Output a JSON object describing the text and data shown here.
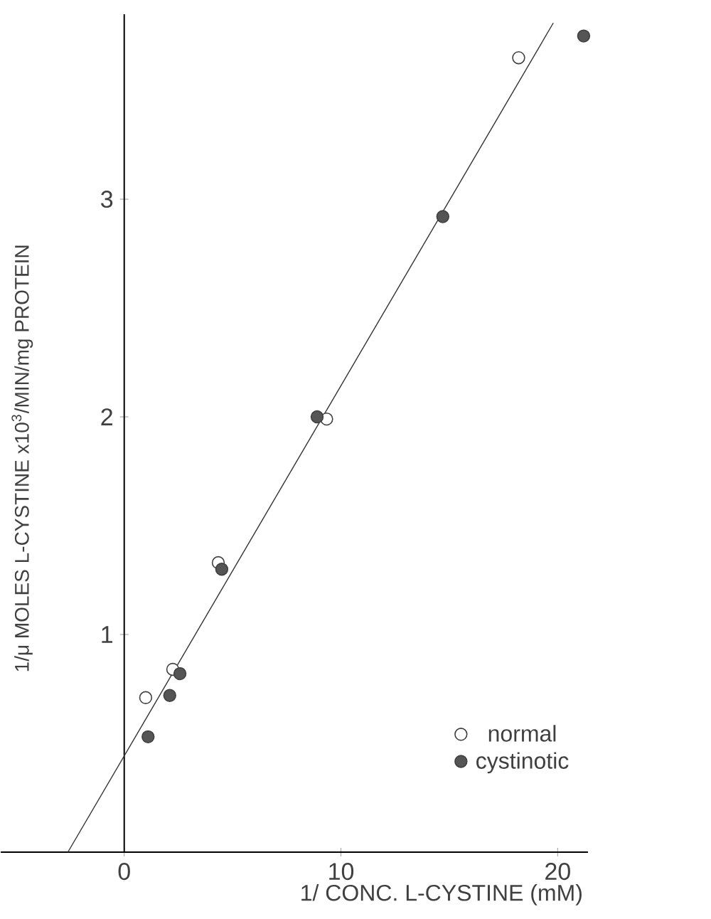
{
  "chart_data": {
    "type": "scatter",
    "xlabel": "1/ CONC.  L-CYSTINE (mM)",
    "ylabel": "1/μ MOLES L-CYSTINE x10$^{3}$/MIN/mg PROTEIN",
    "xlim": [
      -5.7,
      21.4
    ],
    "ylim": [
      0,
      3.85
    ],
    "xticks": [
      0,
      10,
      20
    ],
    "yticks": [
      1,
      2,
      3
    ],
    "legend": "bottom right",
    "grid": false,
    "series": [
      {
        "name": "normal",
        "marker": "circle",
        "color": "#ffffff",
        "x": [
          0.99,
          2.24,
          4.34,
          9.34,
          18.2
        ],
        "values": [
          0.71,
          0.84,
          1.33,
          1.99,
          3.65
        ]
      },
      {
        "name": "cystinotic",
        "marker": "circle",
        "color": "#555555",
        "x": [
          1.1,
          2.1,
          2.57,
          4.5,
          8.9,
          14.7,
          21.2
        ],
        "values": [
          0.53,
          0.72,
          0.82,
          1.3,
          2.0,
          2.92,
          3.75
        ]
      },
      {
        "type": "line",
        "marker": "none",
        "color": "#333333",
        "x": [
          -2.6,
          19.8
        ],
        "values": [
          0,
          3.81
        ]
      }
    ]
  }
}
